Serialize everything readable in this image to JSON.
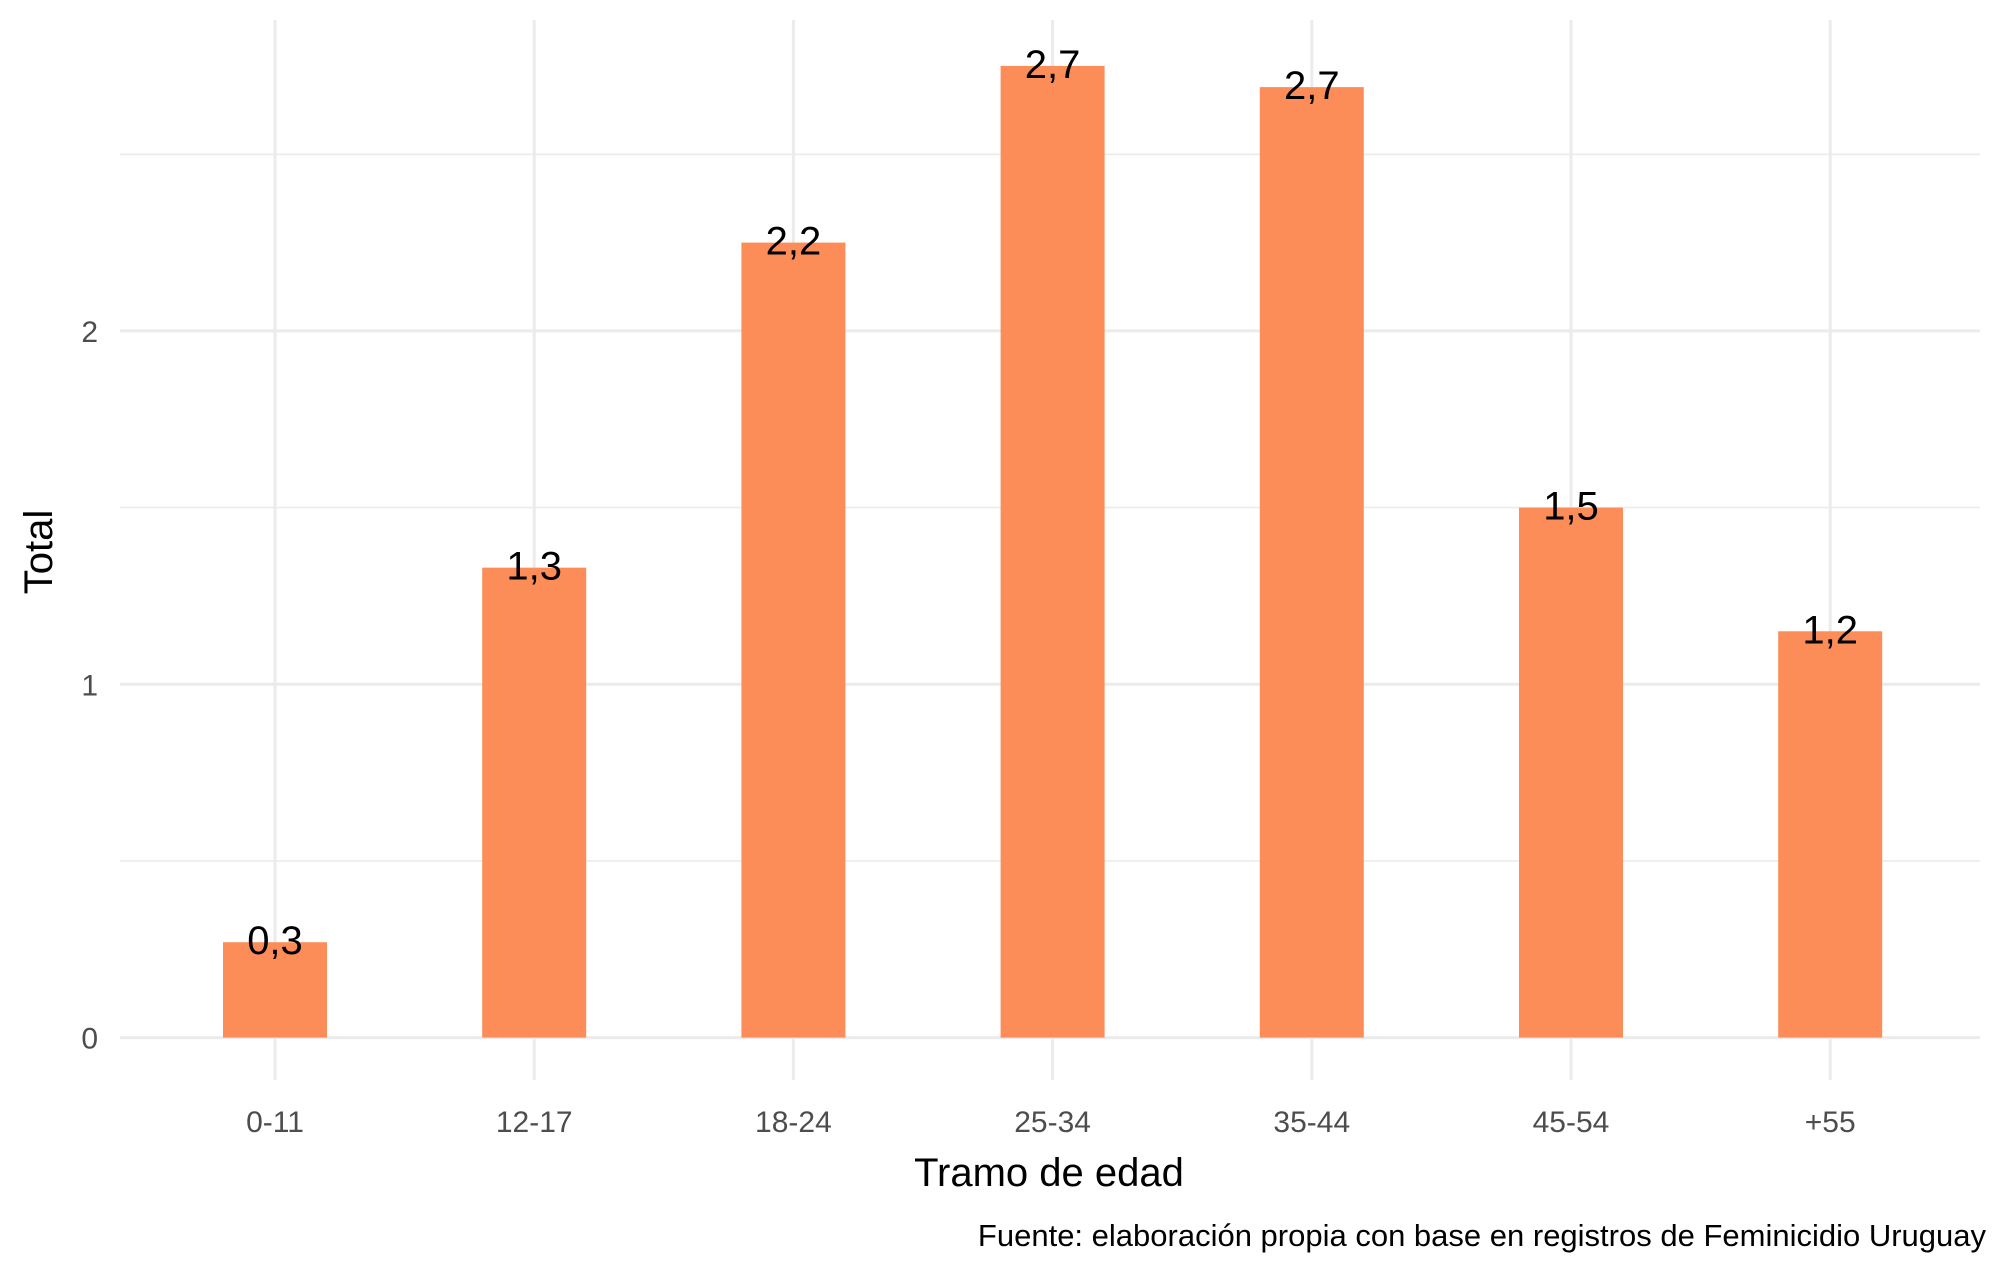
{
  "chart_data": {
    "type": "bar",
    "title": "",
    "xlabel": "Tramo de edad",
    "ylabel": "Total",
    "caption": "Fuente: elaboración propia con base en registros de Feminicidio Uruguay",
    "categories": [
      "0-11",
      "12-17",
      "18-24",
      "25-34",
      "35-44",
      "45-54",
      "+55"
    ],
    "values": [
      0.27,
      1.33,
      2.25,
      2.75,
      2.69,
      1.5,
      1.15
    ],
    "value_labels": [
      "0,3",
      "1,3",
      "2,2",
      "2,7",
      "2,7",
      "1,5",
      "1,2"
    ],
    "yticks": [
      "0",
      "1",
      "2"
    ],
    "ylim": [
      -0.12,
      2.88
    ],
    "grid": true,
    "legend": "none",
    "colors": {
      "bar": "#fc8d59",
      "grid": "#ebebeb",
      "tick_text": "#4d4d4d",
      "text": "#000000"
    }
  }
}
